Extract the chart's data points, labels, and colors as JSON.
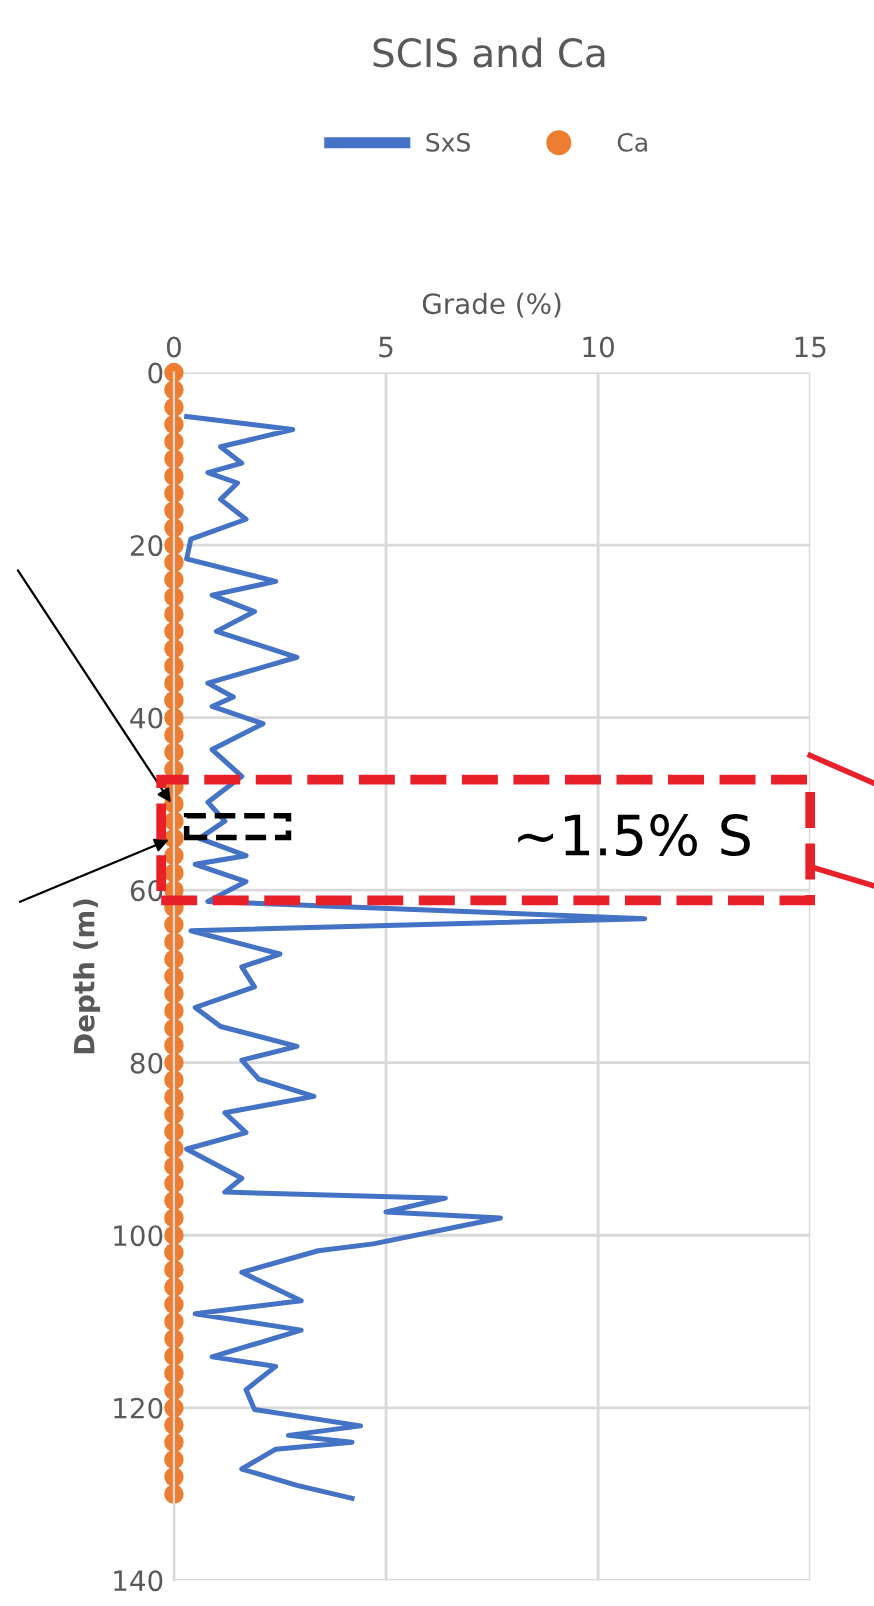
{
  "chart_data": {
    "type": "line",
    "title": "SCIS and Ca",
    "xlabel": "Grade (%)",
    "ylabel": "Depth (m)",
    "xlim": [
      0,
      15
    ],
    "xticks": [
      0,
      5,
      10,
      15
    ],
    "ylim": [
      140,
      0
    ],
    "yticks": [
      0,
      20,
      40,
      60,
      80,
      100,
      120,
      140
    ],
    "grid": true,
    "legend": "top",
    "series": [
      {
        "name": "SxS",
        "color": "#4472c4",
        "marker": "none",
        "x": [
          0.3,
          2.8,
          1.1,
          1.6,
          0.8,
          1.5,
          1.1,
          1.7,
          0.4,
          0.3,
          2.4,
          0.9,
          1.9,
          1.0,
          2.9,
          0.8,
          1.4,
          0.9,
          2.1,
          0.9,
          1.6,
          0.8,
          1.2,
          0.6,
          1.7,
          0.5,
          1.7,
          0.8,
          11.1,
          0.4,
          2.5,
          1.6,
          1.9,
          0.5,
          1.1,
          2.9,
          1.6,
          2.0,
          3.3,
          1.2,
          1.7,
          0.3,
          1.6,
          1.2,
          6.4,
          5.0,
          7.7,
          4.7,
          3.4,
          1.6,
          3.0,
          0.5,
          3.0,
          0.9,
          2.4,
          1.7,
          1.9,
          4.4,
          2.7,
          4.2,
          2.4,
          1.6,
          2.9,
          4.2
        ],
        "values": [
          5.1,
          6.6,
          8.6,
          10.5,
          11.6,
          12.8,
          14.7,
          17,
          19.3,
          21.6,
          24.2,
          25.8,
          27.7,
          30,
          33,
          36,
          37.6,
          38.7,
          40.7,
          43.7,
          46.8,
          49.8,
          52,
          54,
          56,
          57,
          59,
          61.3,
          63.3,
          64.7,
          67.4,
          68.9,
          71.2,
          73.6,
          75.8,
          78.1,
          79.7,
          81.9,
          83.9,
          85.8,
          88.1,
          90,
          93.4,
          95,
          95.7,
          97.3,
          98,
          101,
          101.8,
          104.3,
          107.6,
          109.1,
          111,
          114.1,
          115.2,
          117.9,
          120.2,
          122.1,
          123.2,
          124,
          124.8,
          127.1,
          129,
          130.5
        ]
      },
      {
        "name": "Ca",
        "type": "scatter",
        "color": "#ed7d31",
        "marker": "circle",
        "x": [
          0,
          0,
          0,
          0,
          0,
          0,
          0,
          0,
          0,
          0,
          0,
          0,
          0,
          0,
          0,
          0,
          0,
          0,
          0,
          0,
          0,
          0,
          0,
          0,
          0,
          0,
          0,
          0,
          0,
          0,
          0,
          0,
          0,
          0,
          0,
          0,
          0,
          0,
          0,
          0,
          0,
          0,
          0,
          0,
          0,
          0,
          0,
          0,
          0,
          0,
          0,
          0,
          0,
          0,
          0,
          0,
          0,
          0,
          0,
          0,
          0,
          0,
          0,
          0,
          0,
          0
        ],
        "values": [
          0,
          2,
          4,
          6,
          8,
          10,
          12,
          14,
          16,
          18,
          20,
          22,
          24,
          26,
          28,
          30,
          32,
          34,
          36,
          38,
          40,
          42,
          44,
          46,
          48,
          50,
          52,
          54,
          56,
          58,
          60,
          62,
          64,
          66,
          68,
          70,
          72,
          74,
          76,
          78,
          80,
          82,
          84,
          86,
          88,
          90,
          92,
          94,
          96,
          98,
          100,
          102,
          104,
          106,
          108,
          110,
          112,
          114,
          116,
          118,
          120,
          122,
          124,
          126,
          128,
          130
        ]
      }
    ],
    "annotations": [
      "~1.5% S"
    ]
  }
}
